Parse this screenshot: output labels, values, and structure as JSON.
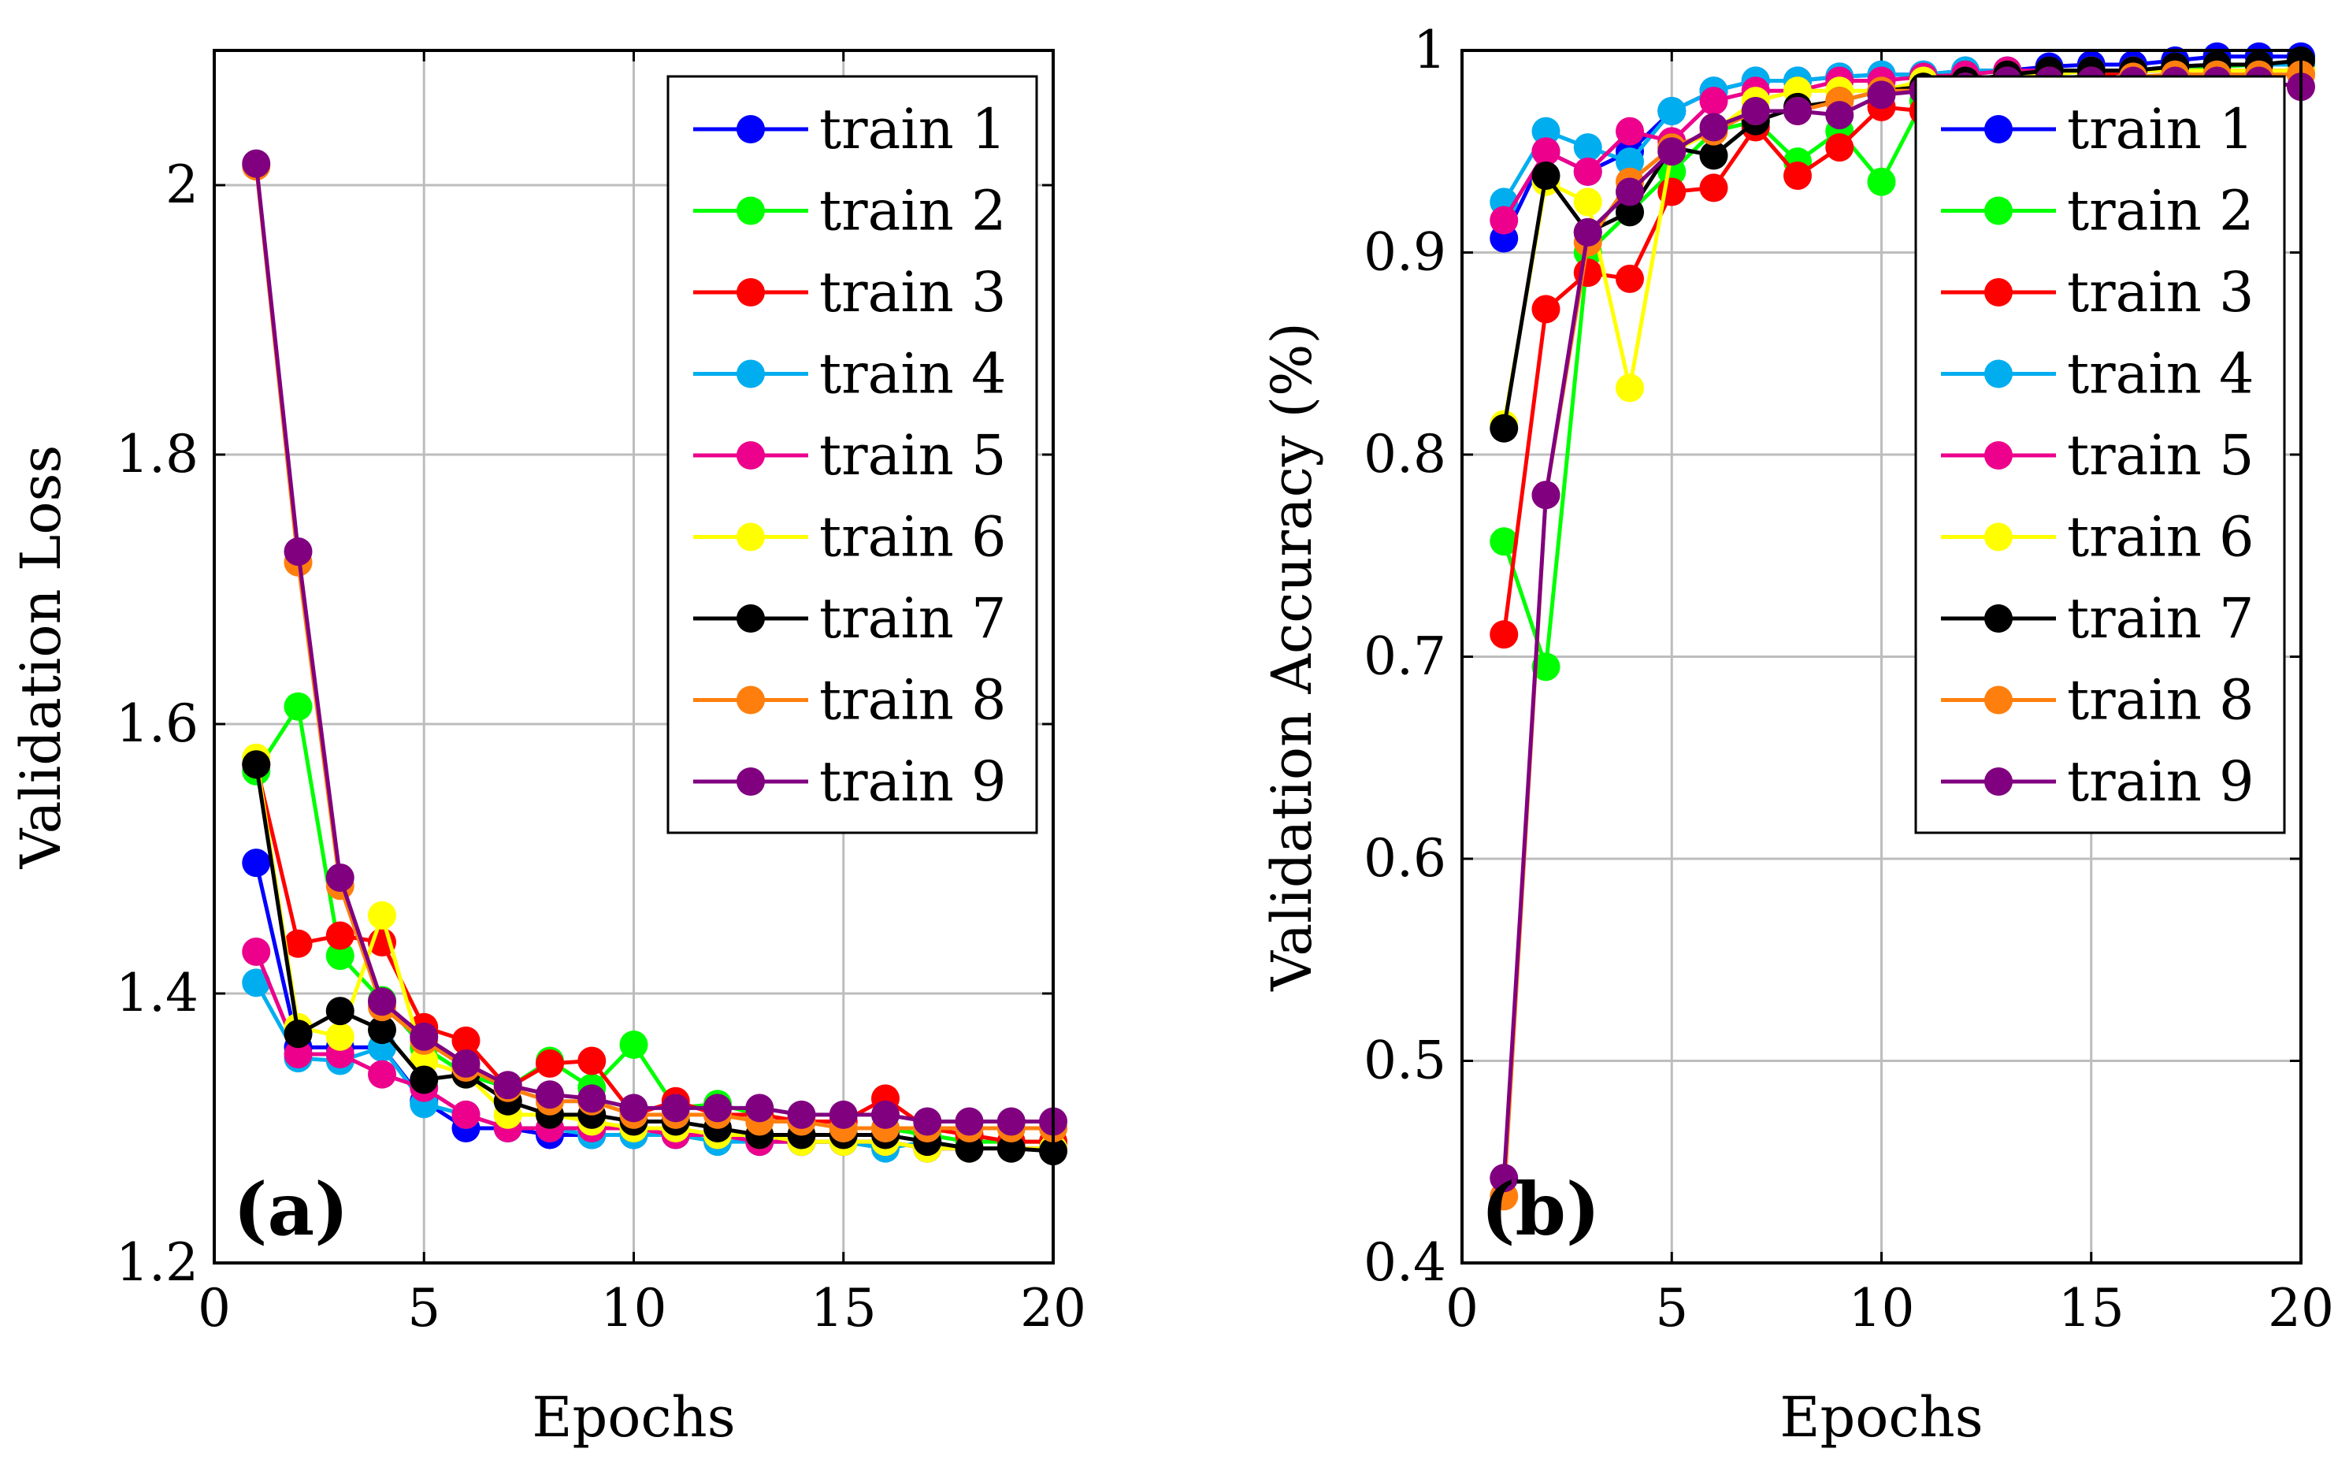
{
  "chart_data": [
    {
      "type": "line",
      "panel_label": "(a)",
      "xlabel": "Epochs",
      "ylabel": "Validation Loss",
      "xlim": [
        0,
        20
      ],
      "ylim": [
        1.2,
        2.1
      ],
      "xticks": [
        0,
        5,
        10,
        15,
        20
      ],
      "yticks": [
        1.2,
        1.4,
        1.6,
        1.8,
        2
      ],
      "xtick_labels": [
        "0",
        "5",
        "10",
        "15",
        "20"
      ],
      "ytick_labels": [
        "1.2",
        "1.4",
        "1.6",
        "1.8",
        "2"
      ],
      "grid": true,
      "legend": "top-right",
      "x": [
        1,
        2,
        3,
        4,
        5,
        6,
        7,
        8,
        9,
        10,
        11,
        12,
        13,
        14,
        15,
        16,
        17,
        18,
        19,
        20
      ],
      "series": [
        {
          "name": "train 1",
          "color": "#0000ff",
          "values": [
            1.497,
            1.36,
            1.36,
            1.36,
            1.32,
            1.3,
            1.3,
            1.295,
            1.295,
            1.295,
            1.295,
            1.295,
            1.29,
            1.29,
            1.29,
            1.29,
            1.285,
            1.285,
            1.285,
            1.285
          ]
        },
        {
          "name": "train 2",
          "color": "#00ff00",
          "values": [
            1.565,
            1.613,
            1.428,
            1.395,
            1.36,
            1.34,
            1.33,
            1.35,
            1.33,
            1.362,
            1.315,
            1.318,
            1.31,
            1.305,
            1.3,
            1.3,
            1.295,
            1.29,
            1.29,
            1.29
          ]
        },
        {
          "name": "train 3",
          "color": "#ff0000",
          "values": [
            1.57,
            1.437,
            1.443,
            1.438,
            1.375,
            1.365,
            1.33,
            1.348,
            1.35,
            1.31,
            1.32,
            1.31,
            1.31,
            1.305,
            1.305,
            1.322,
            1.3,
            1.295,
            1.29,
            1.29
          ]
        },
        {
          "name": "train 4",
          "color": "#00aeef",
          "values": [
            1.408,
            1.352,
            1.35,
            1.36,
            1.318,
            1.31,
            1.3,
            1.3,
            1.295,
            1.295,
            1.295,
            1.29,
            1.29,
            1.29,
            1.29,
            1.285,
            1.29,
            1.285,
            1.285,
            1.285
          ]
        },
        {
          "name": "train 5",
          "color": "#ec008c",
          "values": [
            1.431,
            1.355,
            1.355,
            1.34,
            1.33,
            1.31,
            1.3,
            1.3,
            1.3,
            1.3,
            1.295,
            1.295,
            1.29,
            1.29,
            1.29,
            1.29,
            1.285,
            1.285,
            1.285,
            1.285
          ]
        },
        {
          "name": "train 6",
          "color": "#ffff00",
          "values": [
            1.575,
            1.375,
            1.368,
            1.458,
            1.35,
            1.34,
            1.31,
            1.31,
            1.305,
            1.3,
            1.3,
            1.295,
            1.295,
            1.29,
            1.29,
            1.29,
            1.285,
            1.285,
            1.285,
            1.285
          ]
        },
        {
          "name": "train 7",
          "color": "#000000",
          "values": [
            1.57,
            1.37,
            1.387,
            1.373,
            1.336,
            1.34,
            1.32,
            1.31,
            1.31,
            1.305,
            1.305,
            1.3,
            1.295,
            1.295,
            1.295,
            1.295,
            1.29,
            1.285,
            1.285,
            1.283
          ]
        },
        {
          "name": "train 8",
          "color": "#ff7f0e",
          "values": [
            2.014,
            1.72,
            1.48,
            1.39,
            1.365,
            1.345,
            1.33,
            1.32,
            1.32,
            1.31,
            1.31,
            1.31,
            1.305,
            1.305,
            1.3,
            1.3,
            1.3,
            1.3,
            1.3,
            1.3
          ]
        },
        {
          "name": "train 9",
          "color": "#800080",
          "values": [
            2.016,
            1.728,
            1.486,
            1.394,
            1.368,
            1.348,
            1.332,
            1.325,
            1.322,
            1.315,
            1.315,
            1.315,
            1.315,
            1.31,
            1.31,
            1.31,
            1.305,
            1.305,
            1.305,
            1.305
          ]
        }
      ]
    },
    {
      "type": "line",
      "panel_label": "(b)",
      "xlabel": "Epochs",
      "ylabel": "Validation Accuracy (%)",
      "xlim": [
        0,
        20
      ],
      "ylim": [
        0.4,
        1.0
      ],
      "xticks": [
        0,
        5,
        10,
        15,
        20
      ],
      "yticks": [
        0.4,
        0.5,
        0.6,
        0.7,
        0.8,
        0.9,
        1.0
      ],
      "xtick_labels": [
        "0",
        "5",
        "10",
        "15",
        "20"
      ],
      "ytick_labels": [
        "0.4",
        "0.5",
        "0.6",
        "0.7",
        "0.8",
        "0.9",
        "1"
      ],
      "grid": true,
      "legend": "top-right",
      "x": [
        1,
        2,
        3,
        4,
        5,
        6,
        7,
        8,
        9,
        10,
        11,
        12,
        13,
        14,
        15,
        16,
        17,
        18,
        19,
        20
      ],
      "series": [
        {
          "name": "train 1",
          "color": "#0000ff",
          "values": [
            0.907,
            0.95,
            0.94,
            0.95,
            0.97,
            0.98,
            0.985,
            0.985,
            0.987,
            0.988,
            0.988,
            0.99,
            0.99,
            0.992,
            0.993,
            0.993,
            0.995,
            0.997,
            0.997,
            0.997
          ]
        },
        {
          "name": "train 2",
          "color": "#00ff00",
          "values": [
            0.757,
            0.695,
            0.9,
            0.92,
            0.94,
            0.96,
            0.965,
            0.945,
            0.96,
            0.935,
            0.975,
            0.98,
            0.985,
            0.985,
            0.988,
            0.99,
            0.99,
            0.992,
            0.993,
            0.993
          ]
        },
        {
          "name": "train 3",
          "color": "#ff0000",
          "values": [
            0.711,
            0.872,
            0.89,
            0.887,
            0.93,
            0.932,
            0.962,
            0.938,
            0.952,
            0.972,
            0.97,
            0.98,
            0.985,
            0.985,
            0.987,
            0.99,
            0.99,
            0.99,
            0.99,
            0.99
          ]
        },
        {
          "name": "train 4",
          "color": "#00aeef",
          "values": [
            0.925,
            0.96,
            0.952,
            0.945,
            0.97,
            0.98,
            0.985,
            0.985,
            0.987,
            0.988,
            0.988,
            0.99,
            0.99,
            0.99,
            0.99,
            0.99,
            0.992,
            0.993,
            0.993,
            0.993
          ]
        },
        {
          "name": "train 5",
          "color": "#ec008c",
          "values": [
            0.916,
            0.95,
            0.94,
            0.96,
            0.955,
            0.975,
            0.98,
            0.98,
            0.985,
            0.985,
            0.987,
            0.988,
            0.99,
            0.99,
            0.99,
            0.99,
            0.99,
            0.99,
            0.99,
            0.99
          ]
        },
        {
          "name": "train 6",
          "color": "#ffff00",
          "values": [
            0.815,
            0.935,
            0.925,
            0.833,
            0.95,
            0.96,
            0.975,
            0.98,
            0.98,
            0.98,
            0.985,
            0.985,
            0.988,
            0.988,
            0.99,
            0.99,
            0.99,
            0.99,
            0.99,
            0.99
          ]
        },
        {
          "name": "train 7",
          "color": "#000000",
          "values": [
            0.813,
            0.938,
            0.91,
            0.92,
            0.952,
            0.948,
            0.965,
            0.972,
            0.975,
            0.98,
            0.982,
            0.985,
            0.988,
            0.99,
            0.99,
            0.99,
            0.992,
            0.993,
            0.993,
            0.995
          ]
        },
        {
          "name": "train 8",
          "color": "#ff7f0e",
          "values": [
            0.433,
            0.78,
            0.905,
            0.935,
            0.952,
            0.96,
            0.97,
            0.97,
            0.975,
            0.98,
            0.98,
            0.982,
            0.985,
            0.985,
            0.985,
            0.987,
            0.988,
            0.988,
            0.988,
            0.988
          ]
        },
        {
          "name": "train 9",
          "color": "#800080",
          "values": [
            0.442,
            0.78,
            0.91,
            0.93,
            0.95,
            0.962,
            0.97,
            0.97,
            0.968,
            0.978,
            0.98,
            0.982,
            0.985,
            0.985,
            0.985,
            0.985,
            0.985,
            0.985,
            0.985,
            0.982
          ]
        }
      ]
    }
  ]
}
